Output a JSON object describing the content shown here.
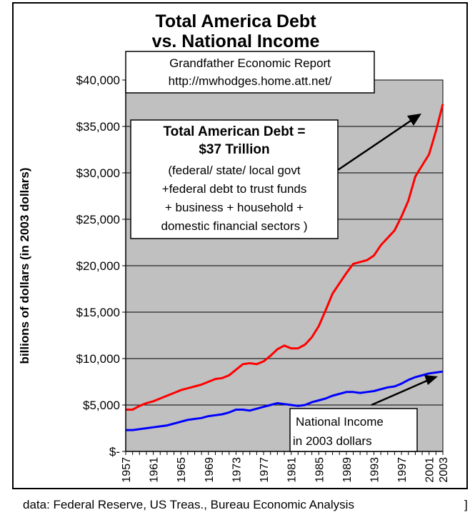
{
  "chart_data": {
    "type": "line",
    "title_lines": [
      "Total America Debt",
      "vs. National Income"
    ],
    "source_box": [
      "Grandfather Economic Report",
      "http://mwhodges.home.att.net/"
    ],
    "ylabel": "billions of dollars (in 2003 dollars)",
    "xlabel": "",
    "ylim": [
      0,
      40000
    ],
    "y_ticks": [
      0,
      5000,
      10000,
      15000,
      20000,
      25000,
      30000,
      35000,
      40000
    ],
    "y_tick_labels": [
      "$-",
      "$5,000",
      "$10,000",
      "$15,000",
      "$20,000",
      "$25,000",
      "$30,000",
      "$35,000",
      "$40,000"
    ],
    "x_ticks": [
      1957,
      1961,
      1965,
      1969,
      1973,
      1977,
      1981,
      1985,
      1989,
      1993,
      1997,
      2001,
      2003
    ],
    "x_tick_labels": [
      "1957",
      "1961",
      "1965",
      "1969",
      "1973",
      "1977",
      "1981",
      "1985",
      "1989",
      "1993",
      "1997",
      "2001",
      "2003"
    ],
    "xlim": [
      1957,
      2003
    ],
    "grid": "horizontal",
    "plot_background": "#c0c0c0",
    "debt_annotation": {
      "bold_lines": [
        "Total American Debt =",
        "$37 Trillion"
      ],
      "lines": [
        "(federal/ state/ local govt",
        "+federal debt to trust funds",
        "+ business + household +",
        "domestic financial sectors )"
      ]
    },
    "income_annotation": {
      "lines": [
        "National Income",
        "in 2003 dollars"
      ]
    },
    "footer": "data: Federal Reserve, US Treas., Bureau Economic Analysis",
    "series": [
      {
        "color": "#ff0000",
        "x": [
          1957,
          1958,
          1959,
          1960,
          1961,
          1962,
          1963,
          1964,
          1965,
          1966,
          1967,
          1968,
          1969,
          1970,
          1971,
          1972,
          1973,
          1974,
          1975,
          1976,
          1977,
          1978,
          1979,
          1980,
          1981,
          1982,
          1983,
          1984,
          1985,
          1986,
          1987,
          1988,
          1989,
          1990,
          1991,
          1992,
          1993,
          1994,
          1995,
          1996,
          1997,
          1998,
          1999,
          2000,
          2001,
          2002,
          2003
        ],
        "y": [
          4500,
          4500,
          4900,
          5200,
          5400,
          5700,
          6000,
          6300,
          6600,
          6800,
          7000,
          7200,
          7500,
          7800,
          7900,
          8200,
          8800,
          9400,
          9500,
          9400,
          9700,
          10300,
          11000,
          11400,
          11100,
          11100,
          11500,
          12300,
          13500,
          15200,
          17000,
          18100,
          19200,
          20200,
          20400,
          20600,
          21100,
          22200,
          23000,
          23800,
          25300,
          27000,
          29600,
          30800,
          32000,
          34500,
          37400
        ]
      },
      {
        "color": "#0000ff",
        "x": [
          1957,
          1958,
          1959,
          1960,
          1961,
          1962,
          1963,
          1964,
          1965,
          1966,
          1967,
          1968,
          1969,
          1970,
          1971,
          1972,
          1973,
          1974,
          1975,
          1976,
          1977,
          1978,
          1979,
          1980,
          1981,
          1982,
          1983,
          1984,
          1985,
          1986,
          1987,
          1988,
          1989,
          1990,
          1991,
          1992,
          1993,
          1994,
          1995,
          1996,
          1997,
          1998,
          1999,
          2000,
          2001,
          2002,
          2003
        ],
        "y": [
          2300,
          2300,
          2400,
          2500,
          2600,
          2700,
          2800,
          3000,
          3200,
          3400,
          3500,
          3600,
          3800,
          3900,
          4000,
          4200,
          4500,
          4500,
          4400,
          4600,
          4800,
          5000,
          5200,
          5100,
          5000,
          4900,
          5000,
          5300,
          5500,
          5700,
          6000,
          6200,
          6400,
          6400,
          6300,
          6400,
          6500,
          6700,
          6900,
          7000,
          7300,
          7700,
          8000,
          8200,
          8400,
          8500,
          8600
        ]
      }
    ]
  }
}
